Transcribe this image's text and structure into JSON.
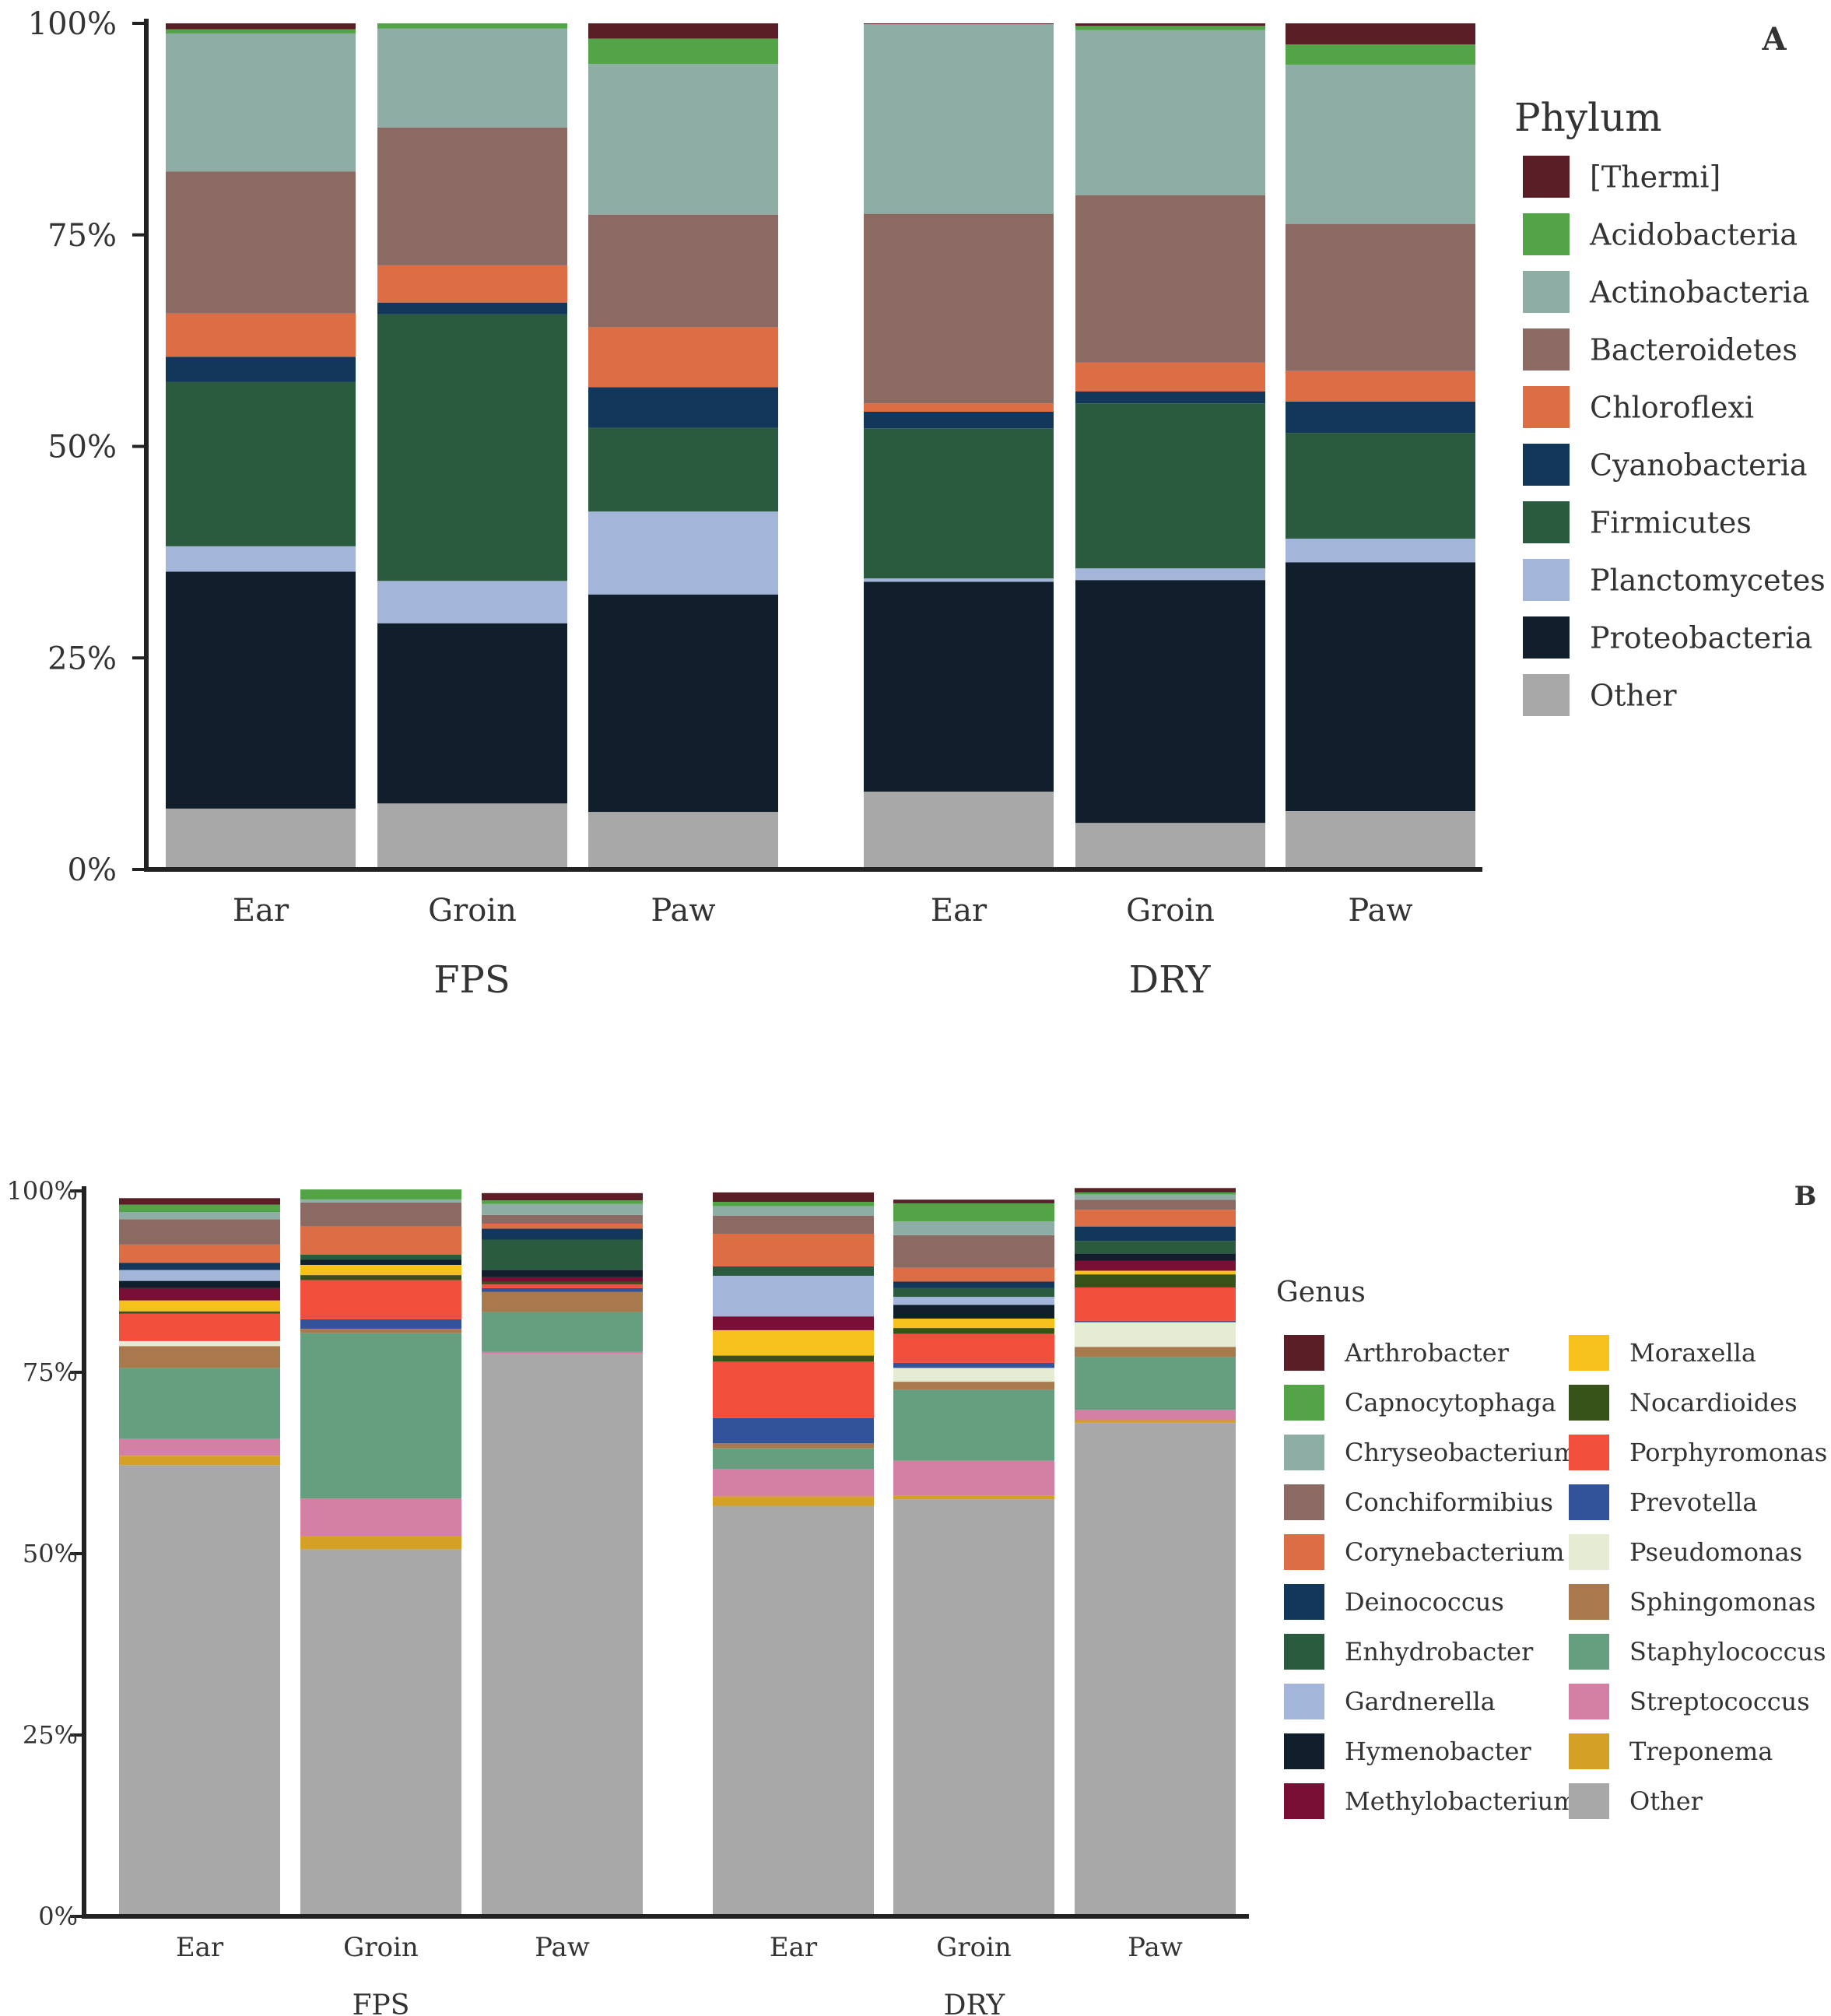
{
  "colors": {
    "[Thermi]": "#5a1f26",
    "Acidobacteria": "#52a447",
    "Actinobacteria": "#8ead a5",
    "Bacteroidetes": "#8c6a64",
    "Chloroflexi": "#dc6d45",
    "Cyanobacteria": "#12375a",
    "Firmicutes": "#2a5b3f",
    "Planctomycetes": "#a3b5d8",
    "Proteobacteria": "#111e2b",
    "Arthrobacter": "#5a1f26",
    "Capnocytophaga": "#52a447",
    "Chryseobacterium": "#8ead a5",
    "Conchiformibius": "#8c6a64",
    "Corynebacterium": "#dc6d45",
    "Deinococcus": "#12375a",
    "Enhydrobacter": "#2a5b3f",
    "Gardnerella": "#a3b5d8",
    "Hymenobacter": "#111e2b",
    "Methylobacterium": "#7a0f35",
    "Moraxella": "#f6c11c",
    "Nocardioides": "#38531a",
    "Porphyromonas": "#f24e3c",
    "Prevotella": "#32529a",
    "Pseudomonas": "#e6ecd3",
    "Sphingomonas": "#a7794c",
    "Staphylococcus": "#659f80",
    "Streptococcus": "#d47fa4",
    "Treponema": "#d4a025",
    "Other": "#a8a8a8"
  },
  "chart_data": [
    {
      "type": "bar",
      "stacked": true,
      "panel_label": "A",
      "legend_title": "Phylum",
      "y_ticks": [
        "0%",
        "25%",
        "50%",
        "75%",
        "100%"
      ],
      "ylim": [
        0,
        100
      ],
      "groups": [
        {
          "label": "FPS",
          "categories": [
            "Ear",
            "Groin",
            "Paw"
          ]
        },
        {
          "label": "DRY",
          "categories": [
            "Ear",
            "Groin",
            "Paw"
          ]
        }
      ],
      "categories": [
        "FPS Ear",
        "FPS Groin",
        "FPS Paw",
        "DRY Ear",
        "DRY Groin",
        "DRY Paw"
      ],
      "series": [
        {
          "name": "Other",
          "values": [
            7.2,
            7.8,
            6.8,
            9.2,
            5.5,
            6.9
          ]
        },
        {
          "name": "Proteobacteria",
          "values": [
            28.0,
            21.3,
            25.7,
            24.8,
            28.7,
            29.4
          ]
        },
        {
          "name": "Planctomycetes",
          "values": [
            3.0,
            5.0,
            9.8,
            0.4,
            1.4,
            2.8
          ]
        },
        {
          "name": "Firmicutes",
          "values": [
            19.4,
            31.5,
            9.9,
            17.7,
            19.5,
            12.5
          ]
        },
        {
          "name": "Cyanobacteria",
          "values": [
            3.0,
            1.4,
            4.8,
            2.0,
            1.4,
            3.7
          ]
        },
        {
          "name": "Chloroflexi",
          "values": [
            5.1,
            4.4,
            7.1,
            1.0,
            3.4,
            3.6
          ]
        },
        {
          "name": "Bacteroidetes",
          "values": [
            16.8,
            16.3,
            13.3,
            22.4,
            19.8,
            17.4
          ]
        },
        {
          "name": "Actinobacteria",
          "values": [
            16.3,
            11.7,
            17.8,
            22.4,
            19.5,
            18.8
          ]
        },
        {
          "name": "Acidobacteria",
          "values": [
            0.5,
            0.6,
            3.0,
            0.0,
            0.5,
            2.4
          ]
        },
        {
          "name": "[Thermi]",
          "values": [
            0.7,
            0.0,
            1.8,
            0.1,
            0.3,
            2.5
          ]
        }
      ],
      "legend_order": [
        "[Thermi]",
        "Acidobacteria",
        "Actinobacteria",
        "Bacteroidetes",
        "Chloroflexi",
        "Cyanobacteria",
        "Firmicutes",
        "Planctomycetes",
        "Proteobacteria",
        "Other"
      ]
    },
    {
      "type": "bar",
      "stacked": true,
      "panel_label": "B",
      "legend_title": "Genus",
      "y_ticks": [
        "0%",
        "25%",
        "50%",
        "75%",
        "100%"
      ],
      "ylim": [
        0,
        100
      ],
      "groups": [
        {
          "label": "FPS",
          "categories": [
            "Ear",
            "Groin",
            "Paw"
          ]
        },
        {
          "label": "DRY",
          "categories": [
            "Ear",
            "Groin",
            "Paw"
          ]
        }
      ],
      "categories": [
        "FPS Ear",
        "FPS Groin",
        "FPS Paw",
        "DRY Ear",
        "DRY Groin",
        "DRY Paw"
      ],
      "series": [
        {
          "name": "Other",
          "values": [
            62.2,
            50.6,
            77.5,
            56.6,
            57.5,
            68.0
          ]
        },
        {
          "name": "Treponema",
          "values": [
            1.3,
            1.8,
            0.0,
            1.3,
            0.5,
            0.4
          ]
        },
        {
          "name": "Streptococcus",
          "values": [
            2.3,
            5.2,
            0.3,
            3.8,
            4.8,
            1.4
          ]
        },
        {
          "name": "Staphylococcus",
          "values": [
            9.8,
            22.8,
            5.5,
            2.8,
            9.8,
            7.3
          ]
        },
        {
          "name": "Sphingomonas",
          "values": [
            3.0,
            0.6,
            2.8,
            0.7,
            1.1,
            1.4
          ]
        },
        {
          "name": "Pseudomonas",
          "values": [
            0.7,
            0.0,
            0.0,
            0.0,
            1.9,
            3.4
          ]
        },
        {
          "name": "Prevotella",
          "values": [
            0.0,
            1.3,
            0.5,
            3.5,
            0.7,
            0.2
          ]
        },
        {
          "name": "Porphyromonas",
          "values": [
            3.8,
            5.4,
            0.5,
            7.8,
            4.0,
            4.6
          ]
        },
        {
          "name": "Nocardioides",
          "values": [
            0.3,
            0.7,
            0.4,
            0.8,
            0.8,
            1.8
          ]
        },
        {
          "name": "Moraxella",
          "values": [
            1.5,
            1.4,
            0.0,
            3.5,
            1.3,
            0.5
          ]
        },
        {
          "name": "Methylobacterium",
          "values": [
            1.7,
            0.0,
            0.6,
            1.9,
            0.0,
            1.4
          ]
        },
        {
          "name": "Hymenobacter",
          "values": [
            1.0,
            0.7,
            1.0,
            0.0,
            1.9,
            1.0
          ]
        },
        {
          "name": "Gardnerella",
          "values": [
            1.5,
            0.0,
            0.0,
            5.6,
            1.1,
            0.0
          ]
        },
        {
          "name": "Enhydrobacter",
          "values": [
            0.0,
            0.7,
            4.2,
            1.3,
            1.2,
            1.7
          ]
        },
        {
          "name": "Deinococcus",
          "values": [
            1.0,
            0.0,
            1.5,
            0.0,
            0.9,
            2.0
          ]
        },
        {
          "name": "Corynebacterium",
          "values": [
            2.5,
            3.9,
            0.7,
            4.5,
            1.9,
            2.3
          ]
        },
        {
          "name": "Conchiformibius",
          "values": [
            3.5,
            3.3,
            1.2,
            2.5,
            4.5,
            1.4
          ]
        },
        {
          "name": "Chryseobacterium",
          "values": [
            1.0,
            0.4,
            1.5,
            1.3,
            1.9,
            0.7
          ]
        },
        {
          "name": "Capnocytophaga",
          "values": [
            1.0,
            1.4,
            0.5,
            0.6,
            2.5,
            0.3
          ]
        },
        {
          "name": "Arthrobacter",
          "values": [
            0.9,
            0.0,
            1.0,
            1.3,
            0.5,
            0.6
          ]
        }
      ],
      "legend_order": [
        "Arthrobacter",
        "Capnocytophaga",
        "Chryseobacterium",
        "Conchiformibius",
        "Corynebacterium",
        "Deinococcus",
        "Enhydrobacter",
        "Gardnerella",
        "Hymenobacter",
        "Methylobacterium",
        "Moraxella",
        "Nocardioides",
        "Porphyromonas",
        "Prevotella",
        "Pseudomonas",
        "Sphingomonas",
        "Staphylococcus",
        "Streptococcus",
        "Treponema",
        "Other"
      ]
    }
  ]
}
